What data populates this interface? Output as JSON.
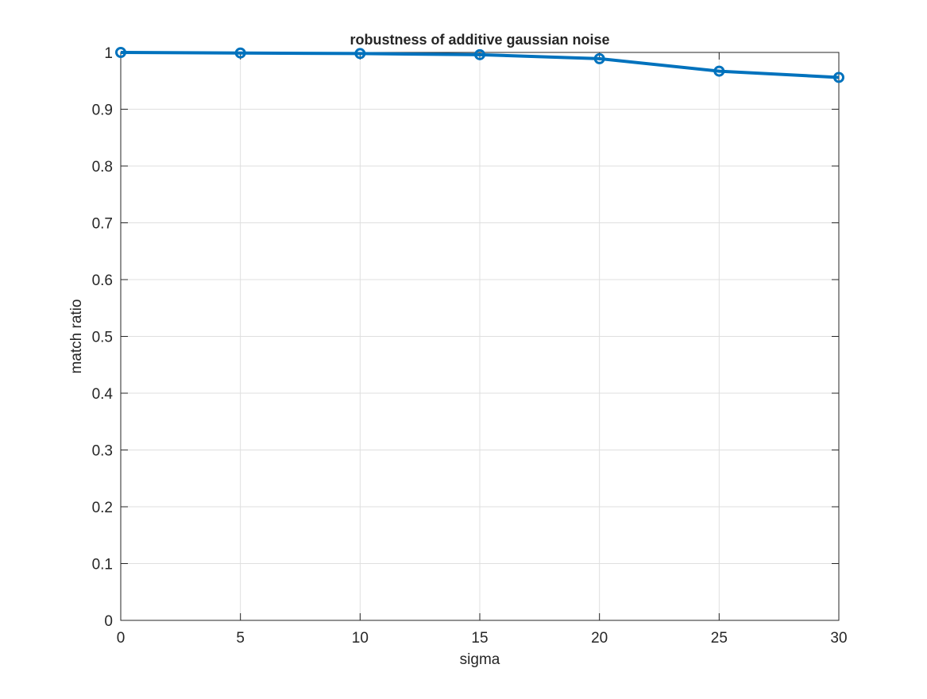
{
  "chart_data": {
    "type": "line",
    "title": "robustness of additive gaussian noise",
    "xlabel": "sigma",
    "ylabel": "match ratio",
    "xlim": [
      0,
      30
    ],
    "ylim": [
      0,
      1
    ],
    "xticks": [
      0,
      5,
      10,
      15,
      20,
      25,
      30
    ],
    "xtick_labels": [
      "0",
      "5",
      "10",
      "15",
      "20",
      "25",
      "30"
    ],
    "yticks": [
      0,
      0.1,
      0.2,
      0.3,
      0.4,
      0.5,
      0.6,
      0.7,
      0.8,
      0.9,
      1
    ],
    "ytick_labels": [
      "0",
      "0.1",
      "0.2",
      "0.3",
      "0.4",
      "0.5",
      "0.6",
      "0.7",
      "0.8",
      "0.9",
      "1"
    ],
    "grid": true,
    "series": [
      {
        "x": [
          0,
          5,
          10,
          15,
          20,
          25,
          30
        ],
        "y": [
          1.0,
          0.999,
          0.998,
          0.996,
          0.989,
          0.967,
          0.956
        ],
        "color": "#0072BD",
        "marker": "circle"
      }
    ]
  }
}
